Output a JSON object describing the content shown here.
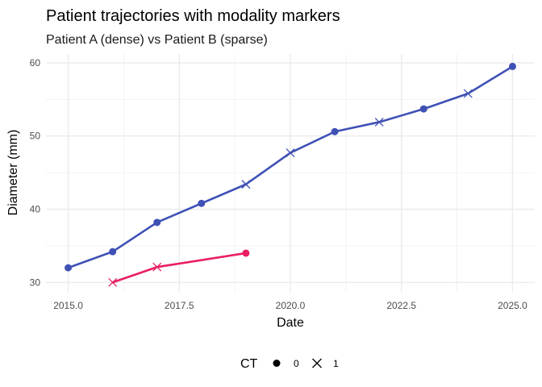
{
  "chart_data": {
    "type": "line",
    "title": "Patient trajectories with modality markers",
    "subtitle": "Patient A (dense) vs Patient B (sparse)",
    "xlabel": "Date",
    "ylabel": "Diameter (mm)",
    "xlim": [
      2014.5,
      2025.5
    ],
    "ylim": [
      28.6,
      61.2
    ],
    "x_ticks": [
      2015.0,
      2017.5,
      2020.0,
      2022.5,
      2025.0
    ],
    "x_tick_labels": [
      "2015.0",
      "2017.5",
      "2020.0",
      "2022.5",
      "2025.0"
    ],
    "y_ticks": [
      30,
      40,
      50,
      60
    ],
    "y_tick_labels": [
      "30",
      "40",
      "50",
      "60"
    ],
    "grid": true,
    "legend_position": "bottom",
    "legend": {
      "title": "CT",
      "entries": [
        {
          "label": "0",
          "shape": "circle"
        },
        {
          "label": "1",
          "shape": "cross"
        }
      ]
    },
    "series": [
      {
        "color": "#3F51B5",
        "points": [
          {
            "x": 2015,
            "y": 32.0,
            "ct": 0
          },
          {
            "x": 2016,
            "y": 34.2,
            "ct": 0
          },
          {
            "x": 2017,
            "y": 38.2,
            "ct": 0
          },
          {
            "x": 2018,
            "y": 40.8,
            "ct": 0
          },
          {
            "x": 2019,
            "y": 43.4,
            "ct": 1
          },
          {
            "x": 2020,
            "y": 47.7,
            "ct": 1
          },
          {
            "x": 2021,
            "y": 50.6,
            "ct": 0
          },
          {
            "x": 2022,
            "y": 51.9,
            "ct": 1
          },
          {
            "x": 2023,
            "y": 53.7,
            "ct": 0
          },
          {
            "x": 2024,
            "y": 55.8,
            "ct": 1
          },
          {
            "x": 2025,
            "y": 59.5,
            "ct": 0
          }
        ]
      },
      {
        "color": "#E91E63",
        "points": [
          {
            "x": 2016,
            "y": 30.0,
            "ct": 1
          },
          {
            "x": 2017,
            "y": 32.1,
            "ct": 1
          },
          {
            "x": 2019,
            "y": 34.0,
            "ct": 0
          }
        ]
      }
    ]
  }
}
